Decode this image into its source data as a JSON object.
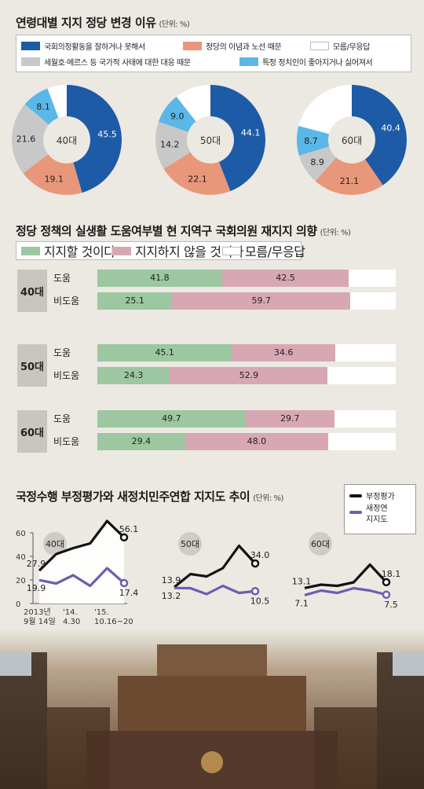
{
  "section1": {
    "title": "연령대별 지지 정당 변경 이유",
    "unit": "(단위: %)",
    "legend": [
      {
        "label": "국회의정활동을 잘하거나 못해서",
        "color": "#1d5ba6"
      },
      {
        "label": "정당의 이념과 노선 때문",
        "color": "#e9977a"
      },
      {
        "label": "모름/무응답",
        "color": "#ffffff"
      },
      {
        "label": "세월호·메르스 등 국가적 사태에 대한 대응 때문",
        "color": "#c8c8c8"
      },
      {
        "label": "특정 정치인이 좋아지거나 싫어져서",
        "color": "#5ab7e8"
      }
    ]
  },
  "section2": {
    "title": "정당 정책의 실생활 도움여부별 현 지역구 국회의원 재지지 의향",
    "unit": "(단위: %)",
    "legend": [
      {
        "label": "지지할 것이다",
        "color": "#9cc7a0"
      },
      {
        "label": "지지하지 않을 것이다",
        "color": "#d7a8b4"
      },
      {
        "label": "모름/무응답",
        "color": "#ffffff"
      }
    ]
  },
  "section3": {
    "title": "국정수행 부정평가와 새정치민주연합 지지도 추이",
    "unit": "(단위: %)",
    "legend": [
      {
        "label": "부정평가",
        "color": "#111111"
      },
      {
        "label": "새정연\n지지도",
        "color": "#6a5fb0"
      }
    ]
  },
  "chart_data": [
    {
      "type": "pie",
      "variant": "donut",
      "categories": [
        "국회의정활동을 잘하거나 못해서",
        "정당의 이념과 노선 때문",
        "세월호·메르스 등 국가적 사태에 대한 대응 때문",
        "특정 정치인이 좋아지거나 싫어져서",
        "모름/무응답"
      ],
      "colors": [
        "#1d5ba6",
        "#e9977a",
        "#c8c8c8",
        "#5ab7e8",
        "#ffffff"
      ],
      "series": [
        {
          "name": "40대",
          "values": [
            45.5,
            19.1,
            21.6,
            8.1,
            5.7
          ],
          "labels": [
            "45.5",
            "19.1",
            "21.6",
            "8.1",
            ""
          ]
        },
        {
          "name": "50대",
          "values": [
            44.1,
            22.1,
            14.2,
            9.0,
            10.6
          ],
          "labels": [
            "44.1",
            "22.1",
            "14.2",
            "9.0",
            ""
          ]
        },
        {
          "name": "60대",
          "values": [
            40.4,
            21.1,
            8.9,
            8.7,
            20.9
          ],
          "labels": [
            "40.4",
            "21.1",
            "8.9",
            "8.7",
            ""
          ]
        }
      ]
    },
    {
      "type": "bar",
      "orientation": "horizontal",
      "stacked": true,
      "series_names": [
        "지지할 것이다",
        "지지하지 않을 것이다",
        "모름/무응답"
      ],
      "colors": [
        "#9cc7a0",
        "#d7a8b4",
        "#ffffff"
      ],
      "groups": [
        {
          "name": "40대",
          "rows": [
            {
              "label": "도움",
              "values": [
                41.8,
                42.5,
                15.7
              ]
            },
            {
              "label": "비도움",
              "values": [
                25.1,
                59.7,
                15.2
              ]
            }
          ]
        },
        {
          "name": "50대",
          "rows": [
            {
              "label": "도움",
              "values": [
                45.1,
                34.6,
                20.3
              ]
            },
            {
              "label": "비도움",
              "values": [
                24.3,
                52.9,
                22.8
              ]
            }
          ]
        },
        {
          "name": "60대",
          "rows": [
            {
              "label": "도움",
              "values": [
                49.7,
                29.7,
                20.6
              ]
            },
            {
              "label": "비도움",
              "values": [
                29.4,
                48.0,
                22.6
              ]
            }
          ]
        }
      ]
    },
    {
      "type": "line",
      "ylim": [
        0,
        60
      ],
      "yticks": [
        0,
        20,
        40,
        60
      ],
      "xticklabels": [
        "2013년\n9월 14일",
        "'14.\n4.30",
        "'15.\n10.16~20"
      ],
      "panels": [
        {
          "name": "40대",
          "series": [
            {
              "name": "부정평가",
              "values": [
                27.9,
                42,
                47,
                51,
                70,
                56.1
              ],
              "start_label": "27.9",
              "end_label": "56.1"
            },
            {
              "name": "새정연 지지도",
              "values": [
                19.9,
                17,
                24,
                15,
                30,
                17.4
              ],
              "start_label": "19.9",
              "end_label": "17.4"
            }
          ]
        },
        {
          "name": "50대",
          "series": [
            {
              "name": "부정평가",
              "values": [
                13.9,
                25,
                23,
                30,
                49,
                34.0
              ],
              "start_label": "13.9",
              "end_label": "34.0"
            },
            {
              "name": "새정연 지지도",
              "values": [
                13.2,
                13,
                8,
                15,
                9,
                10.5
              ],
              "start_label": "13.2",
              "end_label": "10.5"
            }
          ]
        },
        {
          "name": "60대",
          "series": [
            {
              "name": "부정평가",
              "values": [
                13.1,
                16,
                15,
                18,
                33,
                18.1
              ],
              "start_label": "13.1",
              "end_label": "18.1"
            },
            {
              "name": "새정연 지지도",
              "values": [
                7.1,
                11,
                9,
                13,
                11,
                7.5
              ],
              "start_label": "7.1",
              "end_label": "7.5"
            }
          ]
        }
      ]
    }
  ]
}
